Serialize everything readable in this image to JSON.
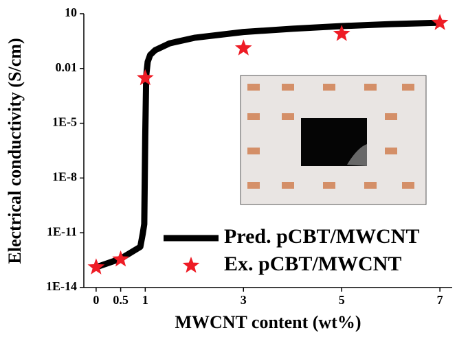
{
  "chart_data": {
    "type": "line-scatter",
    "x_label": "MWCNT content (wt%)",
    "y_label": "Electrical conductivity (S/cm)",
    "log_y": true,
    "xlim": [
      -0.25,
      7.25
    ],
    "ylim": [
      1e-14,
      10
    ],
    "xticks": [
      0,
      0.5,
      1,
      3,
      5,
      7
    ],
    "yticks": [
      {
        "value": 1e-14,
        "label": "1E-14"
      },
      {
        "value": 1e-11,
        "label": "1E-11"
      },
      {
        "value": 1e-08,
        "label": "1E-8"
      },
      {
        "value": 1e-05,
        "label": "1E-5"
      },
      0.01,
      10
    ],
    "legend": "lower right",
    "series": [
      {
        "name": "Pred. pCBT/MWCNT",
        "kind": "line",
        "color": "#000000",
        "x": [
          0,
          0.5,
          0.9,
          0.95,
          0.98,
          1.0,
          1.02,
          1.05,
          1.1,
          1.2,
          1.5,
          2,
          3,
          4,
          5,
          6,
          7
        ],
        "values": [
          1.3e-13,
          3.8e-13,
          1.7e-12,
          9e-12,
          3e-11,
          1.7e-06,
          0.004,
          0.023,
          0.055,
          0.1,
          0.24,
          0.48,
          1,
          1.5,
          2.1,
          2.7,
          3.2
        ]
      },
      {
        "name": "Ex. pCBT/MWCNT",
        "kind": "scatter",
        "color": "#ee1c25",
        "x": [
          0,
          0.5,
          1,
          3,
          5,
          7
        ],
        "values": [
          1.3e-13,
          3.5e-13,
          0.003,
          0.13,
          0.8,
          3.2
        ]
      }
    ]
  }
}
